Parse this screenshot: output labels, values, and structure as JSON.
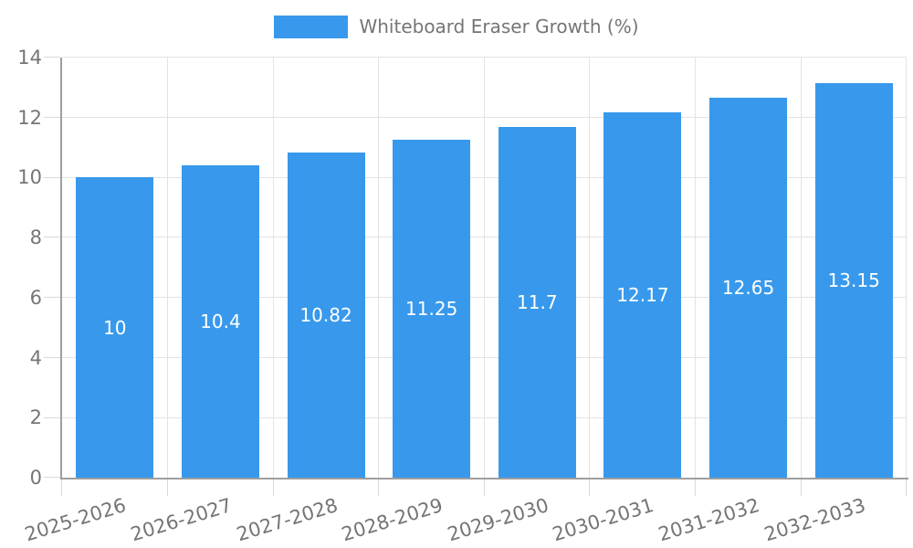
{
  "chart_data": {
    "type": "bar",
    "title": "",
    "legend": {
      "label": "Whiteboard Eraser Growth (%)",
      "position": "top"
    },
    "categories": [
      "2025-2026",
      "2026-2027",
      "2027-2028",
      "2028-2029",
      "2029-2030",
      "2030-2031",
      "2031-2032",
      "2032-2033"
    ],
    "values": [
      10,
      10.4,
      10.82,
      11.25,
      11.7,
      12.17,
      12.65,
      13.15
    ],
    "value_labels": [
      "10",
      "10.4",
      "10.82",
      "11.25",
      "11.7",
      "12.17",
      "12.65",
      "13.15"
    ],
    "xlabel": "",
    "ylabel": "",
    "ylim": [
      0,
      14
    ],
    "yticks": [
      0,
      2,
      4,
      6,
      8,
      10,
      12,
      14
    ],
    "grid": true,
    "colors": {
      "bar": "#3899ec",
      "value_label_text": "#ffffff",
      "axis_text": "#757575",
      "axis_line": "#9e9e9e",
      "gridline": "#e3e3e3",
      "tick_line": "#d9d9d9",
      "background": "#ffffff"
    }
  }
}
